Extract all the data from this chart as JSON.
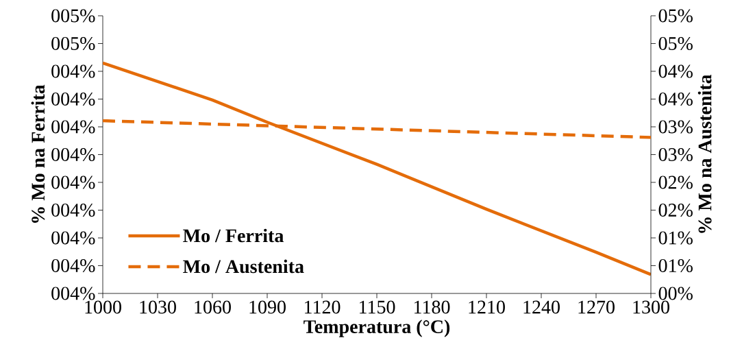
{
  "chart_data": {
    "type": "line",
    "xlabel": "Temperatura (°C)",
    "ylabel": "% Mo na Ferrita",
    "y2label": "% Mo na Austenita",
    "x": [
      1000,
      1060,
      1090,
      1150,
      1210,
      1270,
      1300
    ],
    "series": [
      {
        "name": "Mo / Ferrita",
        "color": "#e46c0a",
        "line_style": "solid",
        "values": [
          4.498,
          4.418,
          4.37,
          4.279,
          4.182,
          4.089,
          4.041
        ]
      },
      {
        "name": "Mo / Austenita",
        "color": "#e46c0a",
        "line_style": "dashed",
        "axis": "y2",
        "x": [
          1000,
          1100,
          1200,
          1300
        ],
        "values": [
          3.11,
          3.01,
          2.91,
          2.81
        ]
      }
    ],
    "xlim": [
      1000,
      1300
    ],
    "xticks": [
      1000,
      1030,
      1060,
      1090,
      1120,
      1150,
      1180,
      1210,
      1240,
      1270,
      1300
    ],
    "ylim": [
      4,
      4.6
    ],
    "yticks": [
      {
        "value": 4,
        "label": "004%"
      },
      {
        "value": 4.06,
        "label": "004%"
      },
      {
        "value": 4.12,
        "label": "004%"
      },
      {
        "value": 4.18,
        "label": "004%"
      },
      {
        "value": 4.24,
        "label": "004%"
      },
      {
        "value": 4.3,
        "label": "004%"
      },
      {
        "value": 4.36,
        "label": "004%"
      },
      {
        "value": 4.42,
        "label": "004%"
      },
      {
        "value": 4.48,
        "label": "004%"
      },
      {
        "value": 4.54,
        "label": "005%"
      },
      {
        "value": 4.6,
        "label": "005%"
      }
    ],
    "y2lim": [
      0,
      5
    ],
    "y2ticks": [
      {
        "value": 0,
        "label": "00%"
      },
      {
        "value": 0.5,
        "label": "01%"
      },
      {
        "value": 1,
        "label": "01%"
      },
      {
        "value": 1.5,
        "label": "02%"
      },
      {
        "value": 2,
        "label": "02%"
      },
      {
        "value": 2.5,
        "label": "03%"
      },
      {
        "value": 3,
        "label": "03%"
      },
      {
        "value": 3.5,
        "label": "04%"
      },
      {
        "value": 4,
        "label": "04%"
      },
      {
        "value": 4.5,
        "label": "05%"
      },
      {
        "value": 5,
        "label": "05%"
      }
    ],
    "grid": false,
    "legend": "bottom left",
    "marker": "none"
  }
}
